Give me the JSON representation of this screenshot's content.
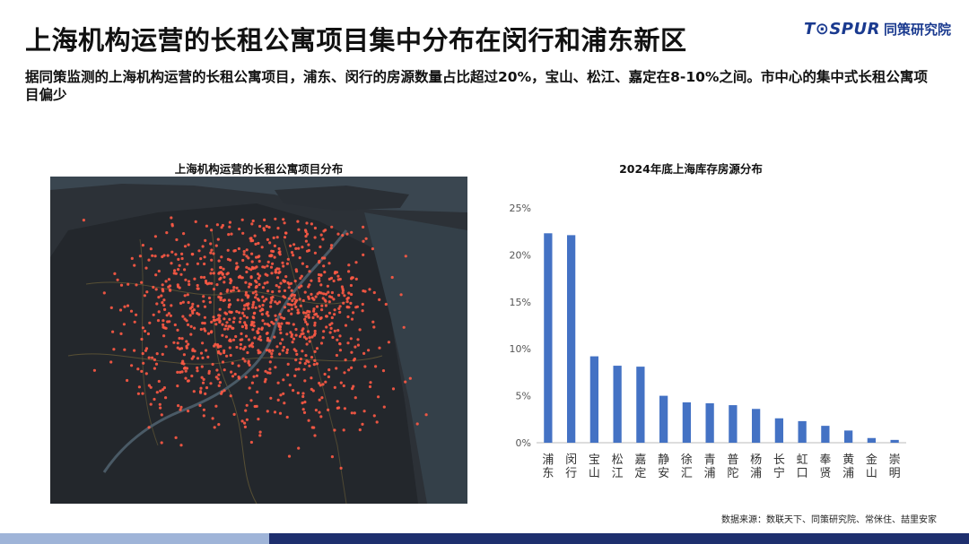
{
  "header": {
    "title": "上海机构运营的长租公寓项目集中分布在闵行和浦东新区",
    "subtitle": "据同策监测的上海机构运营的长租公寓项目，浦东、闵行的房源数量占比超过20%，宝山、松江、嘉定在8-10%之间。市中心的集中式长租公寓项目偏少"
  },
  "logo": {
    "brand": "T⊙SPUR",
    "cn": "同策研究院"
  },
  "map_panel": {
    "title": "上海机构运营的长租公寓项目分布"
  },
  "chart_panel": {
    "title": "2024年底上海库存房源分布"
  },
  "source": "数据来源：数联天下、同策研究院、常侎住、喆里安家",
  "colors": {
    "bar": "#4472c4",
    "map_bg": "#2c3137",
    "dot": "#ff5a45",
    "footer": "#1e2f6e"
  },
  "chart_data": {
    "type": "bar",
    "title": "2024年底上海库存房源分布",
    "categories": [
      "浦东",
      "闵行",
      "宝山",
      "松江",
      "嘉定",
      "静安",
      "徐汇",
      "青浦",
      "普陀",
      "杨浦",
      "长宁",
      "虹口",
      "奉贤",
      "黄浦",
      "金山",
      "崇明"
    ],
    "values": [
      22.3,
      22.1,
      9.2,
      8.2,
      8.1,
      5.0,
      4.3,
      4.2,
      4.0,
      3.6,
      2.6,
      2.3,
      1.8,
      1.3,
      0.5,
      0.3
    ],
    "ylim": [
      0,
      25
    ],
    "yticks": [
      "0%",
      "5%",
      "10%",
      "15%",
      "20%",
      "25%"
    ],
    "grid": false
  }
}
